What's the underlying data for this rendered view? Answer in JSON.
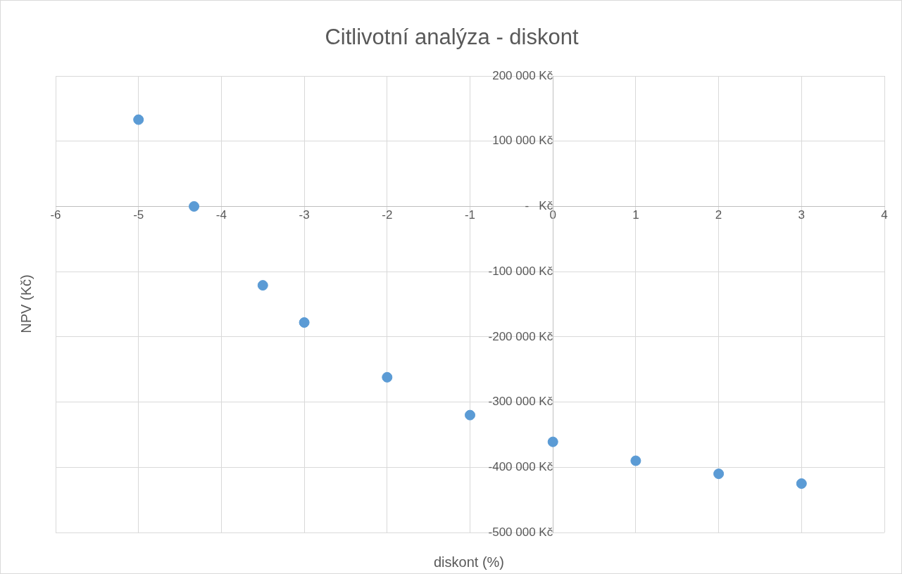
{
  "chart_data": {
    "type": "scatter",
    "title": "Citlivotní analýza - diskont",
    "xlabel": "diskont (%)",
    "ylabel": "NPV (Kč)",
    "x": [
      -5,
      -4.33,
      -3.5,
      -3,
      -2,
      -1,
      0,
      1,
      2,
      3
    ],
    "series": [
      {
        "color": "#5b9bd5",
        "values": [
          133000,
          0,
          -121000,
          -178000,
          -262000,
          -320000,
          -361000,
          -390000,
          -410000,
          -425000
        ]
      }
    ],
    "xlim": [
      -6,
      4
    ],
    "xticks": [
      -6,
      -5,
      -4,
      -3,
      -2,
      -1,
      0,
      1,
      2,
      3,
      4
    ],
    "ylim": [
      -500000,
      200000
    ],
    "yticks": [
      {
        "value": -500000,
        "label": "-500 000 Kč"
      },
      {
        "value": -400000,
        "label": "-400 000 Kč"
      },
      {
        "value": -300000,
        "label": "-300 000 Kč"
      },
      {
        "value": -200000,
        "label": "-200 000 Kč"
      },
      {
        "value": -100000,
        "label": "-100 000 Kč"
      },
      {
        "value": 0,
        "label": "-   Kč"
      },
      {
        "value": 100000,
        "label": "100 000 Kč"
      },
      {
        "value": 200000,
        "label": "200 000 Kč"
      }
    ],
    "grid": true,
    "marker": "circle"
  }
}
